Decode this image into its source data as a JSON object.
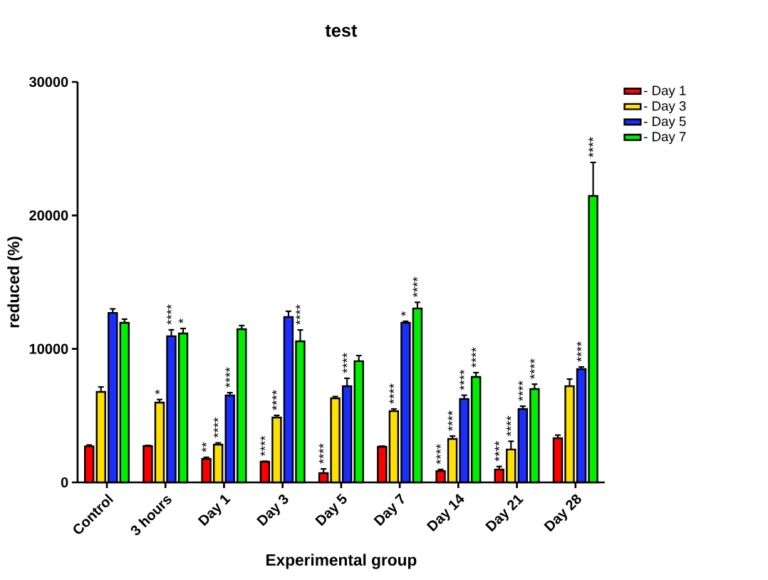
{
  "chart_data": {
    "type": "bar",
    "title": "test",
    "xlabel": "Experimental group",
    "ylabel": "reduced (%)",
    "categories": [
      "Control",
      "3 hours",
      "Day 1",
      "Day 3",
      "Day 5",
      "Day 7",
      "Day 14",
      "Day 21",
      "Day 28"
    ],
    "ylim": [
      0,
      30000
    ],
    "yticks": [
      0,
      10000,
      20000,
      30000
    ],
    "legend": "top right",
    "series": [
      {
        "name": "- Day 1",
        "color": "#ff0000",
        "values": [
          2700,
          2720,
          1760,
          1550,
          690,
          2670,
          850,
          960,
          3310
        ],
        "errors": [
          100,
          50,
          120,
          30,
          320,
          50,
          120,
          230,
          230
        ],
        "value_labels": [
          null,
          null,
          "**",
          "****",
          "****",
          null,
          "****",
          "****",
          null
        ]
      },
      {
        "name": "- Day 3",
        "color": "#ffe000",
        "values": [
          6780,
          5980,
          2830,
          4860,
          6300,
          5340,
          3260,
          2460,
          7210
        ],
        "errors": [
          370,
          230,
          130,
          160,
          130,
          160,
          210,
          620,
          530
        ],
        "value_labels": [
          null,
          "*",
          "****",
          "****",
          null,
          "****",
          "****",
          "****",
          null
        ]
      },
      {
        "name": "- Day 5",
        "color": "#1a2eff",
        "values": [
          12700,
          10950,
          6510,
          12390,
          7210,
          11960,
          6250,
          5500,
          8490
        ],
        "errors": [
          300,
          480,
          210,
          430,
          590,
          110,
          280,
          210,
          160
        ],
        "value_labels": [
          null,
          "****",
          "****",
          null,
          "****",
          "*",
          "****",
          "****",
          "****"
        ]
      },
      {
        "name": "- Day 7",
        "color": "#00ee00",
        "values": [
          11960,
          11160,
          11480,
          10570,
          9080,
          13030,
          7900,
          6990,
          21460
        ],
        "errors": [
          270,
          370,
          270,
          850,
          420,
          460,
          320,
          370,
          2510
        ],
        "value_labels": [
          null,
          "*",
          null,
          "****",
          null,
          "****",
          "****",
          "****",
          "****"
        ]
      }
    ]
  }
}
